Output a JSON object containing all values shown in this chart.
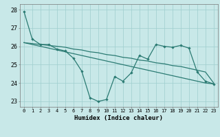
{
  "line1_x": [
    0,
    1,
    2,
    3,
    4,
    5,
    6,
    7,
    8,
    9,
    10,
    11,
    12,
    13,
    14,
    15,
    16,
    17,
    18,
    19,
    20,
    21,
    22,
    23
  ],
  "line1_y": [
    27.9,
    26.4,
    26.1,
    26.1,
    25.85,
    25.75,
    25.35,
    24.65,
    23.2,
    23.0,
    23.1,
    24.35,
    24.1,
    24.55,
    25.5,
    25.3,
    26.1,
    26.0,
    25.95,
    26.05,
    25.9,
    24.6,
    24.1,
    23.95
  ],
  "line2_x": [
    0,
    1,
    2,
    3,
    4,
    5,
    6,
    7,
    8,
    9,
    10,
    11,
    12,
    13,
    14,
    15,
    16,
    17,
    18,
    19,
    20,
    21,
    22,
    23
  ],
  "line2_y": [
    26.2,
    26.15,
    26.1,
    26.05,
    26.0,
    25.95,
    25.85,
    25.8,
    25.7,
    25.65,
    25.55,
    25.5,
    25.4,
    25.35,
    25.25,
    25.2,
    25.1,
    25.05,
    24.95,
    24.9,
    24.8,
    24.7,
    24.6,
    24.0
  ],
  "line3_x": [
    0,
    1,
    2,
    3,
    4,
    5,
    6,
    7,
    8,
    9,
    10,
    11,
    12,
    13,
    14,
    15,
    16,
    17,
    18,
    19,
    20,
    21,
    22,
    23
  ],
  "line3_y": [
    26.2,
    26.1,
    26.0,
    25.9,
    25.8,
    25.7,
    25.6,
    25.5,
    25.4,
    25.3,
    25.2,
    25.1,
    25.0,
    24.9,
    24.8,
    24.7,
    24.6,
    24.5,
    24.4,
    24.3,
    24.2,
    24.1,
    24.0,
    23.95
  ],
  "color": "#2a7a72",
  "bg_color": "#c8e8e8",
  "grid_color": "#9ecece",
  "xlabel": "Humidex (Indice chaleur)",
  "ylim": [
    22.7,
    28.3
  ],
  "xlim": [
    -0.5,
    23.5
  ],
  "yticks": [
    23,
    24,
    25,
    26,
    27,
    28
  ],
  "xticks": [
    0,
    1,
    2,
    3,
    4,
    5,
    6,
    7,
    8,
    9,
    10,
    11,
    12,
    13,
    14,
    15,
    16,
    17,
    18,
    19,
    20,
    21,
    22,
    23
  ]
}
